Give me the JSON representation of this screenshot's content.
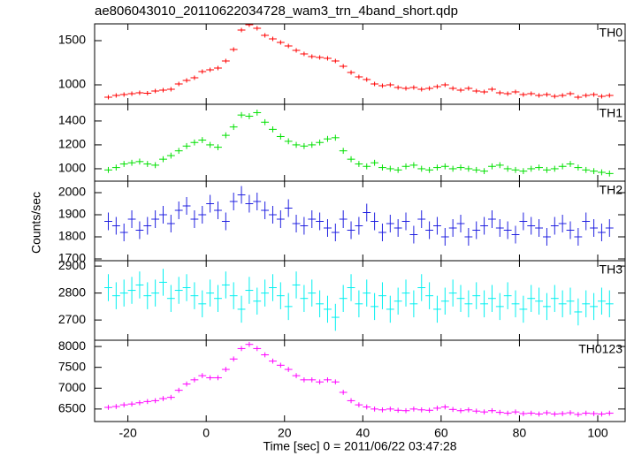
{
  "chart_data": [
    {
      "type": "errorbar",
      "title": "ae806043010_20110622034728_wam3_trn_4band_short.qdp",
      "x": [
        -25,
        -23,
        -21,
        -19,
        -17,
        -15,
        -13,
        -11,
        -9,
        -7,
        -5,
        -3,
        -1,
        1,
        3,
        5,
        7,
        9,
        11,
        13,
        15,
        17,
        19,
        21,
        23,
        25,
        27,
        29,
        31,
        33,
        35,
        37,
        39,
        41,
        43,
        45,
        47,
        49,
        51,
        53,
        55,
        57,
        59,
        61,
        63,
        65,
        67,
        69,
        71,
        73,
        75,
        77,
        79,
        81,
        83,
        85,
        87,
        89,
        91,
        93,
        95,
        97,
        99,
        101,
        103
      ],
      "series": [
        {
          "name": "TH0",
          "color": "#ff0000",
          "error": 25,
          "values": [
            860,
            880,
            890,
            900,
            910,
            905,
            930,
            940,
            950,
            1010,
            1050,
            1080,
            1150,
            1170,
            1190,
            1270,
            1400,
            1620,
            1680,
            1640,
            1560,
            1520,
            1480,
            1440,
            1390,
            1350,
            1320,
            1310,
            1300,
            1270,
            1210,
            1140,
            1090,
            1060,
            1010,
            990,
            1000,
            970,
            960,
            970,
            950,
            960,
            980,
            1000,
            960,
            940,
            960,
            930,
            920,
            950,
            910,
            900,
            920,
            890,
            900,
            880,
            890,
            870,
            880,
            900,
            860,
            880,
            890,
            870,
            880
          ]
        }
      ],
      "xlim": [
        -28.5,
        107
      ],
      "xticks": [
        -20,
        0,
        20,
        40,
        60,
        80,
        100
      ],
      "ylim": [
        780,
        1690
      ],
      "yticks": [
        1000,
        1500
      ]
    },
    {
      "type": "errorbar",
      "x": [
        -25,
        -23,
        -21,
        -19,
        -17,
        -15,
        -13,
        -11,
        -9,
        -7,
        -5,
        -3,
        -1,
        1,
        3,
        5,
        7,
        9,
        11,
        13,
        15,
        17,
        19,
        21,
        23,
        25,
        27,
        29,
        31,
        33,
        35,
        37,
        39,
        41,
        43,
        45,
        47,
        49,
        51,
        53,
        55,
        57,
        59,
        61,
        63,
        65,
        67,
        69,
        71,
        73,
        75,
        77,
        79,
        81,
        83,
        85,
        87,
        89,
        91,
        93,
        95,
        97,
        99,
        101,
        103
      ],
      "series": [
        {
          "name": "TH1",
          "color": "#00e000",
          "error": 25,
          "values": [
            990,
            1010,
            1040,
            1050,
            1060,
            1040,
            1030,
            1080,
            1110,
            1150,
            1190,
            1220,
            1240,
            1200,
            1180,
            1280,
            1350,
            1450,
            1440,
            1470,
            1390,
            1330,
            1270,
            1230,
            1200,
            1190,
            1200,
            1220,
            1250,
            1260,
            1150,
            1080,
            1040,
            1020,
            1050,
            1010,
            1000,
            990,
            1020,
            1030,
            1000,
            990,
            1010,
            1020,
            1000,
            1010,
            1000,
            990,
            980,
            1020,
            1030,
            1000,
            990,
            980,
            1000,
            1010,
            990,
            1000,
            1020,
            1040,
            1010,
            990,
            980,
            970,
            960
          ]
        }
      ],
      "xlim": [
        -28.5,
        107
      ],
      "xticks": [
        -20,
        0,
        20,
        40,
        60,
        80,
        100
      ],
      "ylim": [
        896,
        1540
      ],
      "yticks": [
        1000,
        1200,
        1400
      ]
    },
    {
      "type": "errorbar",
      "ylabel": "Counts/sec",
      "x": [
        -25,
        -23,
        -21,
        -19,
        -17,
        -15,
        -13,
        -11,
        -9,
        -7,
        -5,
        -3,
        -1,
        1,
        3,
        5,
        7,
        9,
        11,
        13,
        15,
        17,
        19,
        21,
        23,
        25,
        27,
        29,
        31,
        33,
        35,
        37,
        39,
        41,
        43,
        45,
        47,
        49,
        51,
        53,
        55,
        57,
        59,
        61,
        63,
        65,
        67,
        69,
        71,
        73,
        75,
        77,
        79,
        81,
        83,
        85,
        87,
        89,
        91,
        93,
        95,
        97,
        99,
        101,
        103
      ],
      "series": [
        {
          "name": "TH2",
          "color": "#2020e0",
          "error": 40,
          "values": [
            1870,
            1850,
            1820,
            1880,
            1830,
            1850,
            1880,
            1900,
            1860,
            1920,
            1940,
            1880,
            1900,
            1950,
            1920,
            1870,
            1960,
            1990,
            1950,
            1960,
            1920,
            1900,
            1880,
            1930,
            1860,
            1850,
            1880,
            1870,
            1840,
            1820,
            1880,
            1830,
            1850,
            1910,
            1870,
            1820,
            1860,
            1840,
            1870,
            1810,
            1880,
            1830,
            1850,
            1800,
            1840,
            1860,
            1800,
            1830,
            1850,
            1880,
            1840,
            1830,
            1810,
            1870,
            1850,
            1840,
            1800,
            1850,
            1860,
            1830,
            1800,
            1870,
            1840,
            1820,
            1840
          ]
        }
      ],
      "xlim": [
        -28.5,
        107
      ],
      "xticks": [
        -20,
        0,
        20,
        40,
        60,
        80,
        100
      ],
      "ylim": [
        1692,
        2052
      ],
      "yticks": [
        1700,
        1800,
        1900,
        2000
      ]
    },
    {
      "type": "errorbar",
      "x": [
        -25,
        -23,
        -21,
        -19,
        -17,
        -15,
        -13,
        -11,
        -9,
        -7,
        -5,
        -3,
        -1,
        1,
        3,
        5,
        7,
        9,
        11,
        13,
        15,
        17,
        19,
        21,
        23,
        25,
        27,
        29,
        31,
        33,
        35,
        37,
        39,
        41,
        43,
        45,
        47,
        49,
        51,
        53,
        55,
        57,
        59,
        61,
        63,
        65,
        67,
        69,
        71,
        73,
        75,
        77,
        79,
        81,
        83,
        85,
        87,
        89,
        91,
        93,
        95,
        97,
        99,
        101,
        103
      ],
      "series": [
        {
          "name": "TH3",
          "color": "#00f0f0",
          "error": 50,
          "values": [
            2820,
            2790,
            2800,
            2810,
            2830,
            2790,
            2800,
            2840,
            2780,
            2810,
            2820,
            2790,
            2760,
            2800,
            2780,
            2830,
            2790,
            2740,
            2810,
            2770,
            2800,
            2820,
            2790,
            2750,
            2830,
            2780,
            2800,
            2760,
            2740,
            2710,
            2780,
            2820,
            2760,
            2800,
            2750,
            2790,
            2740,
            2770,
            2800,
            2760,
            2820,
            2790,
            2740,
            2770,
            2800,
            2780,
            2760,
            2790,
            2760,
            2780,
            2750,
            2790,
            2760,
            2740,
            2780,
            2770,
            2750,
            2780,
            2760,
            2770,
            2730,
            2760,
            2750,
            2770,
            2760
          ]
        }
      ],
      "xlim": [
        -28.5,
        107
      ],
      "xticks": [
        -20,
        0,
        20,
        40,
        60,
        80,
        100
      ],
      "ylim": [
        2625,
        2920
      ],
      "yticks": [
        2700,
        2800,
        2900
      ]
    },
    {
      "type": "errorbar",
      "xlabel": "Time [sec] 0 = 2011/06/22 03:47:28",
      "x": [
        -25,
        -23,
        -21,
        -19,
        -17,
        -15,
        -13,
        -11,
        -9,
        -7,
        -5,
        -3,
        -1,
        1,
        3,
        5,
        7,
        9,
        11,
        13,
        15,
        17,
        19,
        21,
        23,
        25,
        27,
        29,
        31,
        33,
        35,
        37,
        39,
        41,
        43,
        45,
        47,
        49,
        51,
        53,
        55,
        57,
        59,
        61,
        63,
        65,
        67,
        69,
        71,
        73,
        75,
        77,
        79,
        81,
        83,
        85,
        87,
        89,
        91,
        93,
        95,
        97,
        99,
        101,
        103
      ],
      "series": [
        {
          "name": "TH0123",
          "color": "#ff00ff",
          "error": 60,
          "values": [
            6540,
            6560,
            6600,
            6620,
            6650,
            6680,
            6700,
            6750,
            6780,
            6950,
            7100,
            7200,
            7300,
            7250,
            7250,
            7450,
            7700,
            7950,
            8050,
            7950,
            7800,
            7650,
            7550,
            7450,
            7300,
            7200,
            7200,
            7150,
            7200,
            7150,
            6900,
            6700,
            6600,
            6550,
            6500,
            6480,
            6500,
            6470,
            6460,
            6500,
            6480,
            6470,
            6520,
            6550,
            6490,
            6460,
            6480,
            6450,
            6430,
            6460,
            6420,
            6400,
            6430,
            6390,
            6400,
            6380,
            6410,
            6380,
            6390,
            6410,
            6370,
            6400,
            6390,
            6380,
            6400
          ]
        }
      ],
      "xlim": [
        -28.5,
        107
      ],
      "xticks": [
        -20,
        0,
        20,
        40,
        60,
        80,
        100
      ],
      "ylim": [
        6200,
        8150
      ],
      "yticks": [
        6500,
        7000,
        7500,
        8000
      ]
    }
  ]
}
